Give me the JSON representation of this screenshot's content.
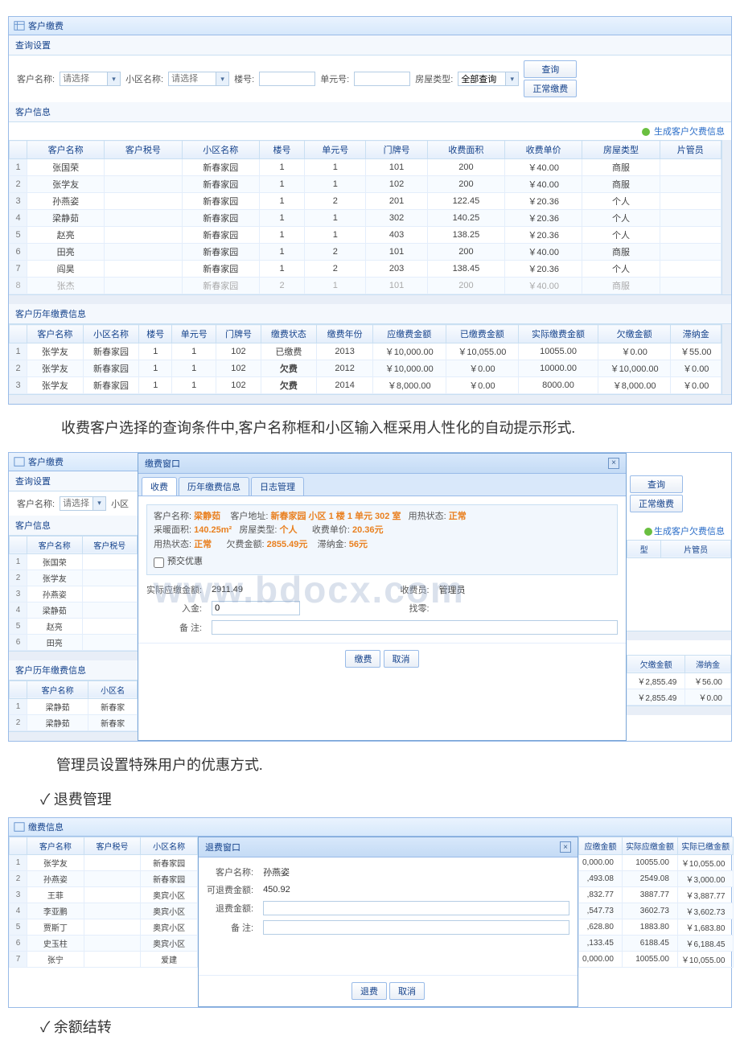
{
  "screenshot1": {
    "panel_title": "客户缴费",
    "search_section": "查询设置",
    "labels": {
      "customer_name": "客户名称:",
      "community_name": "小区名称:",
      "building_no": "楼号:",
      "unit_no": "单元号:",
      "room_type": "房屋类型:",
      "placeholder": "请选择",
      "room_type_value": "全部查询"
    },
    "buttons": {
      "search": "查询",
      "normal_pay": "正常缴费"
    },
    "info_section": "客户信息",
    "gen_link": "生成客户欠费信息",
    "table1": {
      "headers": [
        "客户名称",
        "客户税号",
        "小区名称",
        "楼号",
        "单元号",
        "门牌号",
        "收费面积",
        "收费单价",
        "房屋类型",
        "片管员"
      ],
      "rows": [
        [
          "张国荣",
          "",
          "新春家园",
          "1",
          "1",
          "101",
          "200",
          "￥40.00",
          "商服",
          ""
        ],
        [
          "张学友",
          "",
          "新春家园",
          "1",
          "1",
          "102",
          "200",
          "￥40.00",
          "商服",
          ""
        ],
        [
          "孙燕姿",
          "",
          "新春家园",
          "1",
          "2",
          "201",
          "122.45",
          "￥20.36",
          "个人",
          ""
        ],
        [
          "梁静茹",
          "",
          "新春家园",
          "1",
          "1",
          "302",
          "140.25",
          "￥20.36",
          "个人",
          ""
        ],
        [
          "赵亮",
          "",
          "新春家园",
          "1",
          "1",
          "403",
          "138.25",
          "￥20.36",
          "个人",
          ""
        ],
        [
          "田亮",
          "",
          "新春家园",
          "1",
          "2",
          "101",
          "200",
          "￥40.00",
          "商服",
          ""
        ],
        [
          "阎昊",
          "",
          "新春家园",
          "1",
          "2",
          "203",
          "138.45",
          "￥20.36",
          "个人",
          ""
        ],
        [
          "张杰",
          "",
          "新春家园",
          "2",
          "1",
          "101",
          "200",
          "￥40.00",
          "商服",
          ""
        ]
      ]
    },
    "history_section": "客户历年缴费信息",
    "table2": {
      "headers": [
        "客户名称",
        "小区名称",
        "楼号",
        "单元号",
        "门牌号",
        "缴费状态",
        "缴费年份",
        "应缴费金额",
        "已缴费金额",
        "实际缴费金额",
        "欠缴金额",
        "滞纳金"
      ],
      "rows": [
        [
          "张学友",
          "新春家园",
          "1",
          "1",
          "102",
          "已缴费",
          "2013",
          "￥10,000.00",
          "￥10,055.00",
          "10055.00",
          "￥0.00",
          "￥55.00"
        ],
        [
          "张学友",
          "新春家园",
          "1",
          "1",
          "102",
          "欠费",
          "2012",
          "￥10,000.00",
          "￥0.00",
          "10000.00",
          "￥10,000.00",
          "￥0.00"
        ],
        [
          "张学友",
          "新春家园",
          "1",
          "1",
          "102",
          "欠费",
          "2014",
          "￥8,000.00",
          "￥0.00",
          "8000.00",
          "￥8,000.00",
          "￥0.00"
        ]
      ],
      "red_status_rows": [
        1,
        2
      ]
    }
  },
  "caption1": "收费客户选择的查询条件中,客户名称框和小区输入框采用人性化的自动提示形式.",
  "screenshot2": {
    "panel_title": "客户缴费",
    "search_section": "查询设置",
    "dialog_title": "缴费窗口",
    "tabs": [
      "收费",
      "历年缴费信息",
      "日志管理"
    ],
    "active_tab": 0,
    "info": {
      "line1_lbl_name": "客户名称:",
      "line1_val_name": "梁静茹",
      "line1_lbl_addr": "客户地址:",
      "line1_val_addr": "新春家园 小区 1 楼 1 单元 302 室",
      "line1_lbl_heat": "用热状态:",
      "line1_val_heat": "正常",
      "line2_lbl_area": "采暖面积:",
      "line2_val_area": "140.25m²",
      "line2_lbl_type": "房屋类型:",
      "line2_val_type": "个人",
      "line2_lbl_price": "收费单价:",
      "line2_val_price": "20.36元",
      "line3_lbl_heat": "用热状态:",
      "line3_val_heat": "正常",
      "line3_lbl_owe": "欠费金额:",
      "line3_val_owe": "2855.49元",
      "line3_lbl_late": "滞纳金:",
      "line3_val_late": "56元",
      "checkbox": "预交优惠"
    },
    "form": {
      "lbl_actual": "实际应缴金额:",
      "val_actual": "2911.49",
      "lbl_operator": "收费员:",
      "val_operator": "管理员",
      "lbl_income": "入金:",
      "val_income": "0",
      "lbl_change": "找零:",
      "lbl_remark": "备 注:"
    },
    "footer": {
      "pay": "缴费",
      "cancel": "取消"
    },
    "left": {
      "labels": {
        "customer_name": "客户名称:",
        "placeholder": "请选择",
        "community": "小区"
      },
      "info_section": "客户信息",
      "table": {
        "headers": [
          "客户名称",
          "客户税号"
        ],
        "rows": [
          [
            "张国荣",
            ""
          ],
          [
            "张学友",
            ""
          ],
          [
            "孙燕姿",
            ""
          ],
          [
            "梁静茹",
            ""
          ],
          [
            "赵亮",
            ""
          ],
          [
            "田亮",
            ""
          ]
        ]
      },
      "history_section": "客户历年缴费信息",
      "table2": {
        "headers": [
          "客户名称",
          "小区名"
        ],
        "rows": [
          [
            "梁静茹",
            "新春家"
          ],
          [
            "梁静茹",
            "新春家"
          ]
        ]
      }
    },
    "right": {
      "buttons": {
        "search": "查询",
        "normal_pay": "正常缴费"
      },
      "gen_link": "生成客户欠费信息",
      "th_type": "型",
      "th_mgr": "片管员",
      "th_owe": "欠缴金额",
      "th_late": "滞纳金",
      "rows": [
        [
          "￥2,855.49",
          "￥56.00"
        ],
        [
          "￥2,855.49",
          "￥0.00"
        ]
      ]
    },
    "watermark": "www.bdocx.com"
  },
  "caption2": "管理员设置特殊用户的优惠方式.",
  "check_refund": "✓ 退费管理",
  "screenshot3": {
    "panel_title": "缴费信息",
    "dialog_title": "退费窗口",
    "left": {
      "headers": [
        "客户名称",
        "客户税号",
        "小区名称"
      ],
      "rows": [
        [
          "张学友",
          "",
          "新春家园"
        ],
        [
          "孙燕姿",
          "",
          "新春家园"
        ],
        [
          "王菲",
          "",
          "奥宾小区"
        ],
        [
          "李亚鹏",
          "",
          "奥宾小区"
        ],
        [
          "贾斯丁",
          "",
          "奥宾小区"
        ],
        [
          "史玉柱",
          "",
          "奥宾小区"
        ],
        [
          "张宁",
          "",
          "爱建"
        ]
      ]
    },
    "form": {
      "lbl_name": "客户名称:",
      "val_name": "孙燕姿",
      "lbl_refundable": "可退费金额:",
      "val_refundable": "450.92",
      "lbl_refund": "退费金额:",
      "lbl_remark": "备   注:"
    },
    "footer": {
      "refund": "退费",
      "cancel": "取消"
    },
    "right": {
      "headers": [
        "应缴金额",
        "实际应缴金额",
        "实际已缴金额"
      ],
      "rows": [
        [
          "0,000.00",
          "10055.00",
          "￥10,055.00"
        ],
        [
          ",493.08",
          "2549.08",
          "￥3,000.00"
        ],
        [
          ",832.77",
          "3887.77",
          "￥3,887.77"
        ],
        [
          ",547.73",
          "3602.73",
          "￥3,602.73"
        ],
        [
          ",628.80",
          "1883.80",
          "￥1,683.80"
        ],
        [
          ",133.45",
          "6188.45",
          "￥6,188.45"
        ],
        [
          "0,000.00",
          "10055.00",
          "￥10,055.00"
        ]
      ]
    }
  },
  "check_balance": "✓ 余额结转"
}
